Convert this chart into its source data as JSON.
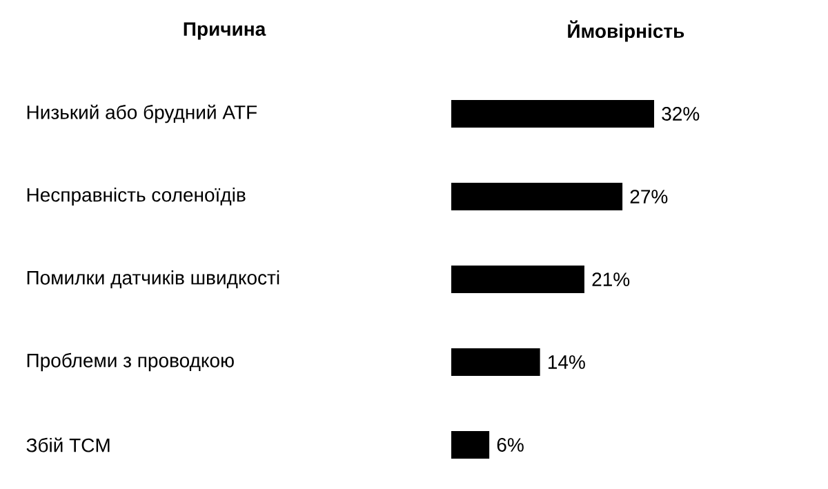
{
  "chart_data": {
    "type": "bar",
    "orientation": "horizontal",
    "xlabel": "Ймовірність",
    "ylabel": "Причина",
    "categories": [
      "Низький або брудний ATF",
      "Несправність соленоїдів",
      "Помилки датчиків швидкості",
      "Проблеми з проводкою",
      "Збій TCM"
    ],
    "values": [
      32,
      27,
      21,
      14,
      6
    ],
    "value_labels": [
      "32%",
      "27%",
      "21%",
      "14%",
      "6%"
    ],
    "color": "#000000",
    "tick_labels": "y"
  }
}
